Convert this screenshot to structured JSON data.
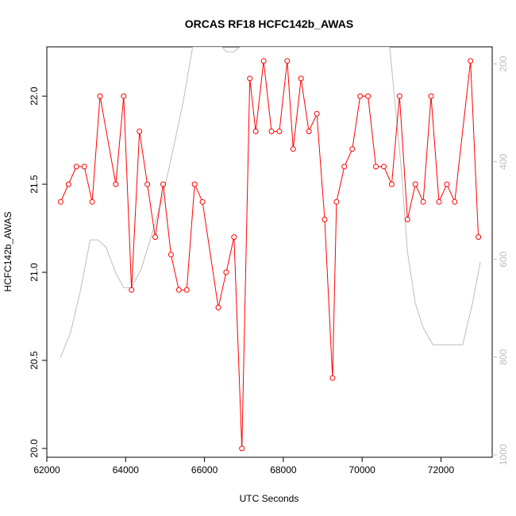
{
  "chart_data": {
    "type": "line",
    "title": "ORCAS RF18 HCFC142b_AWAS",
    "xlabel": "UTC Seconds",
    "ylabel": "HCFC142b_AWAS",
    "xlim": [
      62000,
      73300
    ],
    "ylim": [
      19.95,
      22.28
    ],
    "x_ticks": [
      62000,
      64000,
      66000,
      68000,
      70000,
      72000
    ],
    "x_tick_labels": [
      "62000",
      "64000",
      "66000",
      "68000",
      "70000",
      "72000"
    ],
    "y_ticks": [
      20.0,
      20.5,
      21.0,
      21.5,
      22.0
    ],
    "y_tick_labels": [
      "20.0",
      "20.5",
      "21.0",
      "21.5",
      "22.0"
    ],
    "right_axis": {
      "lim": [
        1005,
        165
      ],
      "ticks": [
        200,
        400,
        600,
        800,
        1000
      ],
      "tick_labels": [
        "200",
        "400",
        "600",
        "800",
        "1000"
      ],
      "color": "#bdbdbd"
    },
    "series": [
      {
        "color": "#ff0000",
        "marker": "open-circle",
        "x": [
          62350,
          62550,
          62750,
          62950,
          63150,
          63350,
          63750,
          63950,
          64150,
          64350,
          64550,
          64750,
          64950,
          65150,
          65350,
          65550,
          65750,
          65950,
          66350,
          66550,
          66750,
          66950,
          67150,
          67300,
          67500,
          67700,
          67900,
          68100,
          68250,
          68450,
          68650,
          68850,
          69050,
          69250,
          69350,
          69550,
          69750,
          69950,
          70150,
          70350,
          70550,
          70750,
          70950,
          71150,
          71350,
          71550,
          71750,
          71950,
          72150,
          72350,
          72750,
          72950
        ],
        "y": [
          21.4,
          21.5,
          21.6,
          21.6,
          21.4,
          22.0,
          21.5,
          22.0,
          20.9,
          21.8,
          21.5,
          21.2,
          21.5,
          21.1,
          20.9,
          20.9,
          21.5,
          21.4,
          20.8,
          21.0,
          21.2,
          20.0,
          22.1,
          21.8,
          22.2,
          21.8,
          21.8,
          22.2,
          21.7,
          22.1,
          21.8,
          21.9,
          21.3,
          20.4,
          21.4,
          21.6,
          21.7,
          22.0,
          22.0,
          21.6,
          21.6,
          21.5,
          22.0,
          21.3,
          21.5,
          21.4,
          22.0,
          21.4,
          21.5,
          21.4,
          22.2,
          21.2
        ]
      },
      {
        "color": "#bdbdbd",
        "axis": "right",
        "x": [
          62350,
          62600,
          62850,
          63100,
          63300,
          63500,
          63750,
          63950,
          64150,
          64400,
          64700,
          64950,
          65200,
          65450,
          65700,
          66000,
          66200,
          66450,
          66550,
          66750,
          66900,
          67000,
          67200,
          67500,
          67800,
          68000,
          68200,
          68400,
          68700,
          69000,
          69300,
          69600,
          69900,
          70200,
          70450,
          70700,
          71000,
          71150,
          71350,
          71550,
          71800,
          72000,
          72300,
          72550,
          72800,
          73000
        ],
        "y": [
          800,
          750,
          665,
          560,
          560,
          575,
          628,
          658,
          658,
          618,
          540,
          468,
          376,
          282,
          165,
          165,
          165,
          165,
          175,
          175,
          165,
          165,
          165,
          165,
          165,
          165,
          165,
          165,
          165,
          165,
          165,
          165,
          165,
          165,
          165,
          165,
          420,
          585,
          690,
          740,
          775,
          775,
          775,
          775,
          690,
          605
        ]
      }
    ]
  }
}
